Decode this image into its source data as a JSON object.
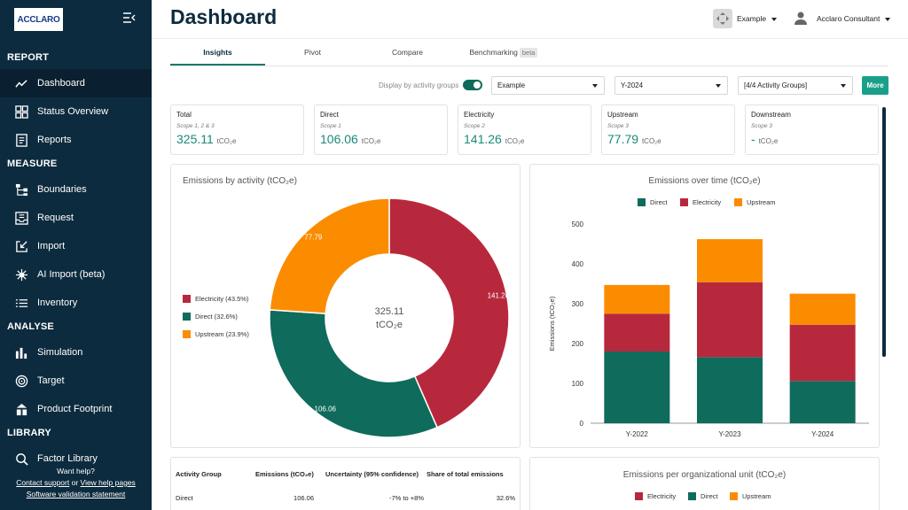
{
  "app": {
    "logo": "ACCLARO"
  },
  "sidebar": {
    "sections": [
      {
        "title": "REPORT",
        "items": [
          {
            "label": "Dashboard",
            "icon": "trend-line-icon",
            "active": true
          },
          {
            "label": "Status Overview",
            "icon": "grid-icon"
          },
          {
            "label": "Reports",
            "icon": "document-icon"
          }
        ]
      },
      {
        "title": "MEASURE",
        "items": [
          {
            "label": "Boundaries",
            "icon": "hierarchy-icon"
          },
          {
            "label": "Request",
            "icon": "inbox-icon"
          },
          {
            "label": "Import",
            "icon": "import-icon"
          },
          {
            "label": "AI Import (beta)",
            "icon": "ai-icon"
          },
          {
            "label": "Inventory",
            "icon": "list-icon"
          }
        ]
      },
      {
        "title": "ANALYSE",
        "items": [
          {
            "label": "Simulation",
            "icon": "bars-icon"
          },
          {
            "label": "Target",
            "icon": "target-icon"
          }
        ]
      },
      {
        "title": "",
        "items": [
          {
            "label": "Product Footprint",
            "icon": "footprint-icon"
          }
        ]
      },
      {
        "title": "LIBRARY",
        "items": [
          {
            "label": "Factor Library",
            "icon": "library-icon"
          }
        ]
      }
    ],
    "help": {
      "want_help": "Want help?",
      "contact": "Contact support",
      "or": "or",
      "view_help": "View help pages",
      "validation": "Software validation statement"
    }
  },
  "header": {
    "title": "Dashboard",
    "org": "Example",
    "user": "Acclaro Consultant"
  },
  "tabs": [
    {
      "label": "Insights",
      "active": true
    },
    {
      "label": "Pivot"
    },
    {
      "label": "Compare"
    },
    {
      "label": "Benchmarking",
      "badge": "beta"
    }
  ],
  "filters": {
    "toggle_label": "Display by activity groups",
    "toggle_on": true,
    "org": "Example",
    "year": "Y-2024",
    "groups": "[4/4 Activity Groups]",
    "more": "More"
  },
  "kpis": [
    {
      "title": "Total",
      "scope": "Scope 1, 2 & 3",
      "value": "325.11",
      "unit": "tCO₂e"
    },
    {
      "title": "Direct",
      "scope": "Scope 1",
      "value": "106.06",
      "unit": "tCO₂e"
    },
    {
      "title": "Electricity",
      "scope": "Scope 2",
      "value": "141.26",
      "unit": "tCO₂e"
    },
    {
      "title": "Upstream",
      "scope": "Scope 3",
      "value": "77.79",
      "unit": "tCO₂e"
    },
    {
      "title": "Downstream",
      "scope": "Scope 3",
      "value": "-",
      "unit": "tCO₂e"
    }
  ],
  "colors": {
    "electricity": "#b8283d",
    "direct": "#0f6b5c",
    "upstream": "#fb8c00"
  },
  "chart_data": [
    {
      "type": "pie",
      "title": "Emissions by activity (tCO₂e)",
      "center_label": "325.11",
      "center_unit": "tCO₂e",
      "categories": [
        "Electricity",
        "Direct",
        "Upstream"
      ],
      "values": [
        141.26,
        106.06,
        77.79
      ],
      "legend": [
        "Electricity (43.5%)",
        "Direct (32.6%)",
        "Upstream (23.9%)"
      ],
      "legend_position": "left"
    },
    {
      "type": "bar",
      "title": "Emissions over time (tCO₂e)",
      "categories": [
        "Y-2022",
        "Y-2023",
        "Y-2024"
      ],
      "series": [
        {
          "name": "Direct",
          "values": [
            180,
            166,
            106.06
          ]
        },
        {
          "name": "Electricity",
          "values": [
            95,
            188,
            141.26
          ]
        },
        {
          "name": "Upstream",
          "values": [
            72,
            108,
            77.79
          ]
        }
      ],
      "stacked": true,
      "ylabel": "Emissions (tCO₂e)",
      "ylim": [
        0,
        500
      ],
      "yticks": [
        "0",
        "100",
        "200",
        "300",
        "400",
        "500"
      ],
      "legend_position": "top",
      "grid": false
    }
  ],
  "table": {
    "headers": [
      "Activity Group",
      "Emissions (tCO₂e)",
      "Uncertainty (95% confidence)",
      "Share of total emissions"
    ],
    "rows": [
      [
        "Direct",
        "106.06",
        "-7% to +8%",
        "32.6%"
      ]
    ]
  },
  "org_panel": {
    "title": "Emissions per organizational unit (tCO₂e)",
    "legend": [
      "Electricity",
      "Direct",
      "Upstream"
    ]
  }
}
